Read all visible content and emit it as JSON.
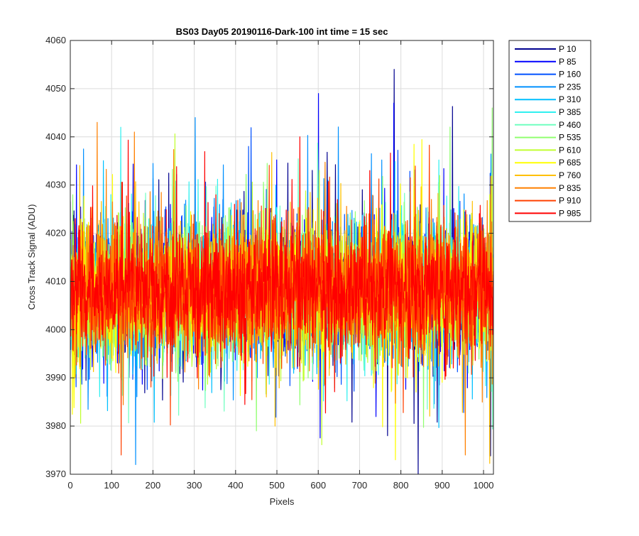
{
  "chart_data": {
    "type": "line",
    "title": "BS03 Day05 20190116-Dark-100 int time = 15 sec",
    "xlabel": "Pixels",
    "ylabel": "Cross Track Signal (ADU)",
    "xlim": [
      0,
      1024
    ],
    "ylim": [
      3970,
      4060
    ],
    "xticks": [
      0,
      100,
      200,
      300,
      400,
      500,
      600,
      700,
      800,
      900,
      1000
    ],
    "yticks": [
      3970,
      3980,
      3990,
      4000,
      4010,
      4020,
      4030,
      4040,
      4050,
      4060
    ],
    "grid": true,
    "legend_position": "outside-top-right",
    "series": [
      {
        "name": "P 10",
        "color": "#00008f"
      },
      {
        "name": "P 85",
        "color": "#0000ff"
      },
      {
        "name": "P 160",
        "color": "#0050ff"
      },
      {
        "name": "P 235",
        "color": "#0090ff"
      },
      {
        "name": "P 310",
        "color": "#00c0ff"
      },
      {
        "name": "P 385",
        "color": "#30f0f0"
      },
      {
        "name": "P 460",
        "color": "#70ffc0"
      },
      {
        "name": "P 535",
        "color": "#90ff70"
      },
      {
        "name": "P 610",
        "color": "#c0ff30"
      },
      {
        "name": "P 685",
        "color": "#ffff00"
      },
      {
        "name": "P 760",
        "color": "#ffc000"
      },
      {
        "name": "P 835",
        "color": "#ff8000"
      },
      {
        "name": "P 910",
        "color": "#ff4000"
      },
      {
        "name": "P 985",
        "color": "#ff0000"
      }
    ],
    "noise_profile": {
      "baseline": 4008,
      "typical_min": 3990,
      "typical_max": 4030,
      "points_per_series": 1024
    },
    "notable_values": [
      {
        "series": "P 10",
        "x": 783,
        "y": 4054
      },
      {
        "series": "P 10",
        "x": 767,
        "y": 3978
      },
      {
        "series": "P 85",
        "x": 600,
        "y": 4049
      },
      {
        "series": "P 85",
        "x": 782,
        "y": 4047
      },
      {
        "series": "P 235",
        "x": 158,
        "y": 3972
      },
      {
        "series": "P 235",
        "x": 302,
        "y": 4044
      },
      {
        "series": "P 385",
        "x": 122,
        "y": 4042
      },
      {
        "series": "P 535",
        "x": 1020,
        "y": 4046
      },
      {
        "series": "P 535",
        "x": 450,
        "y": 3979
      },
      {
        "series": "P 685",
        "x": 786,
        "y": 3973
      },
      {
        "series": "P 760",
        "x": 495,
        "y": 3980
      },
      {
        "series": "P 835",
        "x": 65,
        "y": 4043
      },
      {
        "series": "P 835",
        "x": 155,
        "y": 4041
      },
      {
        "series": "P 835",
        "x": 955,
        "y": 3974
      },
      {
        "series": "P 910",
        "x": 123,
        "y": 3974
      },
      {
        "series": "P 985",
        "x": 555,
        "y": 4040
      }
    ]
  }
}
